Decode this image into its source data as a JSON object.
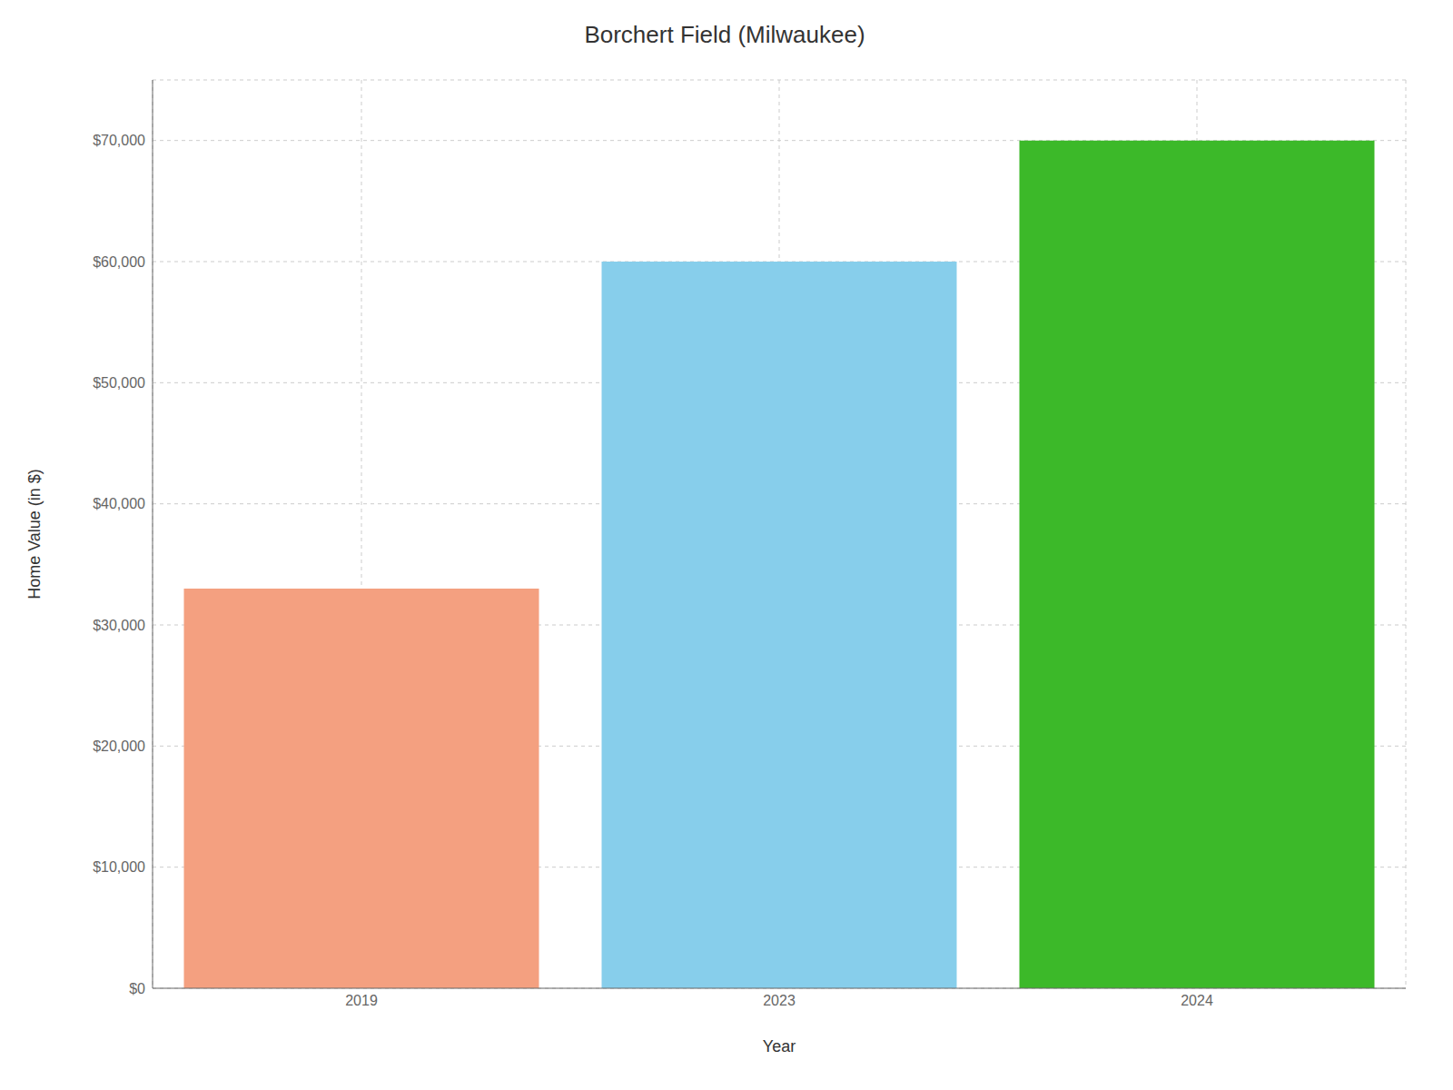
{
  "chart_data": {
    "type": "bar",
    "title": "Borchert Field (Milwaukee)",
    "xlabel": "Year",
    "ylabel": "Home Value (in $)",
    "categories": [
      "2019",
      "2023",
      "2024"
    ],
    "values": [
      33000,
      60000,
      70000
    ],
    "colors": [
      "#F4A080",
      "#87CEEB",
      "#3CB929"
    ],
    "ylim": [
      0,
      75000
    ],
    "yticks": [
      {
        "value": 0,
        "label": "$0"
      },
      {
        "value": 10000,
        "label": "$10,000"
      },
      {
        "value": 20000,
        "label": "$20,000"
      },
      {
        "value": 30000,
        "label": "$30,000"
      },
      {
        "value": 40000,
        "label": "$40,000"
      },
      {
        "value": 50000,
        "label": "$50,000"
      },
      {
        "value": 60000,
        "label": "$60,000"
      },
      {
        "value": 70000,
        "label": "$70,000"
      }
    ],
    "grid": true
  }
}
